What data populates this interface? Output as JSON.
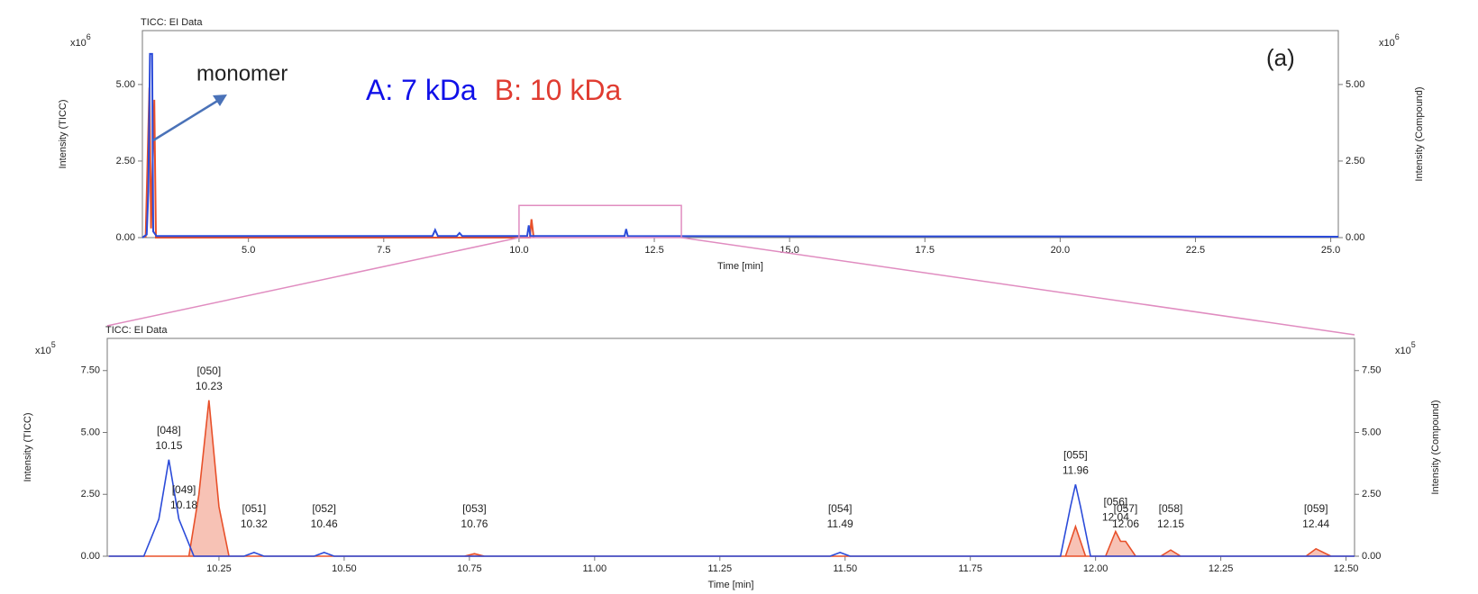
{
  "chart_data": [
    {
      "type": "line",
      "title": "TICC: EI Data",
      "x_label": "Time [min]",
      "y_label": "Intensity (TICC)",
      "y2_label": "Intensity (Compound)",
      "y_multiplier": {
        "base": "x10",
        "exp": "6"
      },
      "annotation": "monomer",
      "panel_label": "(a)",
      "xlim": [
        3.04,
        25.14
      ],
      "xticks": [
        {
          "value": 5,
          "label": "5.0"
        },
        7.5,
        {
          "value": 10,
          "label": "10.0"
        },
        12.5,
        {
          "value": 15,
          "label": "15.0"
        },
        17.5,
        {
          "value": 20,
          "label": "20.0"
        },
        22.5,
        {
          "value": 25,
          "label": "25.0"
        }
      ],
      "ylim": [
        0,
        6.76
      ],
      "yticks": [
        {
          "value": 0,
          "label": "0.00"
        },
        {
          "value": 2.5,
          "label": "2.50"
        },
        {
          "value": 5,
          "label": "5.00"
        }
      ],
      "y2lim": [
        0,
        6.76
      ],
      "y2ticks": [
        {
          "value": 0,
          "label": "0.00"
        },
        {
          "value": 2.5,
          "label": "2.50"
        },
        {
          "value": 5,
          "label": "5.00"
        }
      ],
      "zoom_box": {
        "x": [
          10,
          13
        ],
        "y": [
          0,
          1.05
        ]
      },
      "series": [
        {
          "name": "B: 10 kDa",
          "color": "#e8502a",
          "x": [
            3.1,
            3.17,
            3.2,
            3.26,
            3.29,
            10.2,
            10.23,
            10.27
          ],
          "values": [
            0,
            4.9,
            0.3,
            4.5,
            0,
            0,
            0.6,
            0
          ]
        },
        {
          "name": "A: 7 kDa",
          "color": "#2b4bd9",
          "x": [
            3.04,
            3.12,
            3.15,
            3.18,
            3.22,
            3.24,
            3.3,
            8.4,
            8.45,
            8.5,
            8.85,
            8.9,
            8.95,
            10.15,
            10.18,
            10.21,
            11.95,
            11.98,
            12.01,
            25.14
          ],
          "values": [
            0,
            0.1,
            1.5,
            6.0,
            6.0,
            0.2,
            0.05,
            0.05,
            0.25,
            0.05,
            0.05,
            0.15,
            0.05,
            0.05,
            0.4,
            0.05,
            0.05,
            0.28,
            0.05,
            0.03
          ]
        }
      ]
    },
    {
      "type": "line",
      "title": "TICC: EI Data",
      "x_label": "Time [min]",
      "y_label": "Intensity (TICC)",
      "y2_label": "Intensity (Compound)",
      "y_multiplier": {
        "base": "x10",
        "exp": "5"
      },
      "xlim": [
        10.027,
        12.517
      ],
      "xticks": [
        10.25,
        {
          "value": 10.5,
          "label": "10.50"
        },
        10.75,
        {
          "value": 11,
          "label": "11.00"
        },
        11.25,
        {
          "value": 11.5,
          "label": "11.50"
        },
        11.75,
        {
          "value": 12,
          "label": "12.00"
        },
        12.25,
        {
          "value": 12.5,
          "label": "12.50"
        }
      ],
      "ylim": [
        0,
        8.8
      ],
      "yticks": [
        {
          "value": 0,
          "label": "0.00"
        },
        {
          "value": 2.5,
          "label": "2.50"
        },
        {
          "value": 5,
          "label": "5.00"
        },
        {
          "value": 7.5,
          "label": "7.50"
        }
      ],
      "y2lim": [
        0,
        8.8
      ],
      "y2ticks": [
        {
          "value": 0,
          "label": "0.00"
        },
        {
          "value": 2.5,
          "label": "2.50"
        },
        {
          "value": 5,
          "label": "5.00"
        },
        {
          "value": 7.5,
          "label": "7.50"
        }
      ],
      "series": [
        {
          "color": "#e8502a",
          "x": [
            10.03,
            10.19,
            10.21,
            10.23,
            10.25,
            10.27,
            10.74,
            10.76,
            10.78,
            11.94,
            11.96,
            11.98,
            12.02,
            12.04,
            12.05,
            12.06,
            12.08,
            12.13,
            12.15,
            12.17,
            12.42,
            12.44,
            12.47,
            12.517
          ],
          "values": [
            0,
            0,
            2.5,
            6.3,
            2.0,
            0,
            0,
            0.1,
            0,
            0,
            1.2,
            0,
            0,
            1.0,
            0.6,
            0.6,
            0,
            0,
            0.25,
            0,
            0,
            0.3,
            0,
            0
          ]
        },
        {
          "color": "#2b4bd9",
          "x": [
            10.03,
            10.1,
            10.13,
            10.15,
            10.17,
            10.2,
            10.3,
            10.32,
            10.34,
            10.44,
            10.46,
            10.48,
            11.47,
            11.49,
            11.51,
            11.93,
            11.95,
            11.96,
            11.97,
            11.99,
            12.517
          ],
          "values": [
            0,
            0,
            1.5,
            3.9,
            1.5,
            0,
            0,
            0.15,
            0,
            0,
            0.15,
            0,
            0,
            0.15,
            0,
            0,
            2.0,
            2.9,
            2.0,
            0,
            0
          ]
        }
      ],
      "peaks": [
        {
          "tag": "[048]",
          "rt": 10.15
        },
        {
          "tag": "[049]",
          "rt": 10.18
        },
        {
          "tag": "[050]",
          "rt": 10.23
        },
        {
          "tag": "[051]",
          "rt": 10.32
        },
        {
          "tag": "[052]",
          "rt": 10.46
        },
        {
          "tag": "[053]",
          "rt": 10.76
        },
        {
          "tag": "[054]",
          "rt": 11.49
        },
        {
          "tag": "[055]",
          "rt": 11.96
        },
        {
          "tag": "[056]",
          "rt": 12.04
        },
        {
          "tag": "[057]",
          "rt": 12.06
        },
        {
          "tag": "[058]",
          "rt": 12.15
        },
        {
          "tag": "[059]",
          "rt": 12.44
        }
      ]
    }
  ]
}
